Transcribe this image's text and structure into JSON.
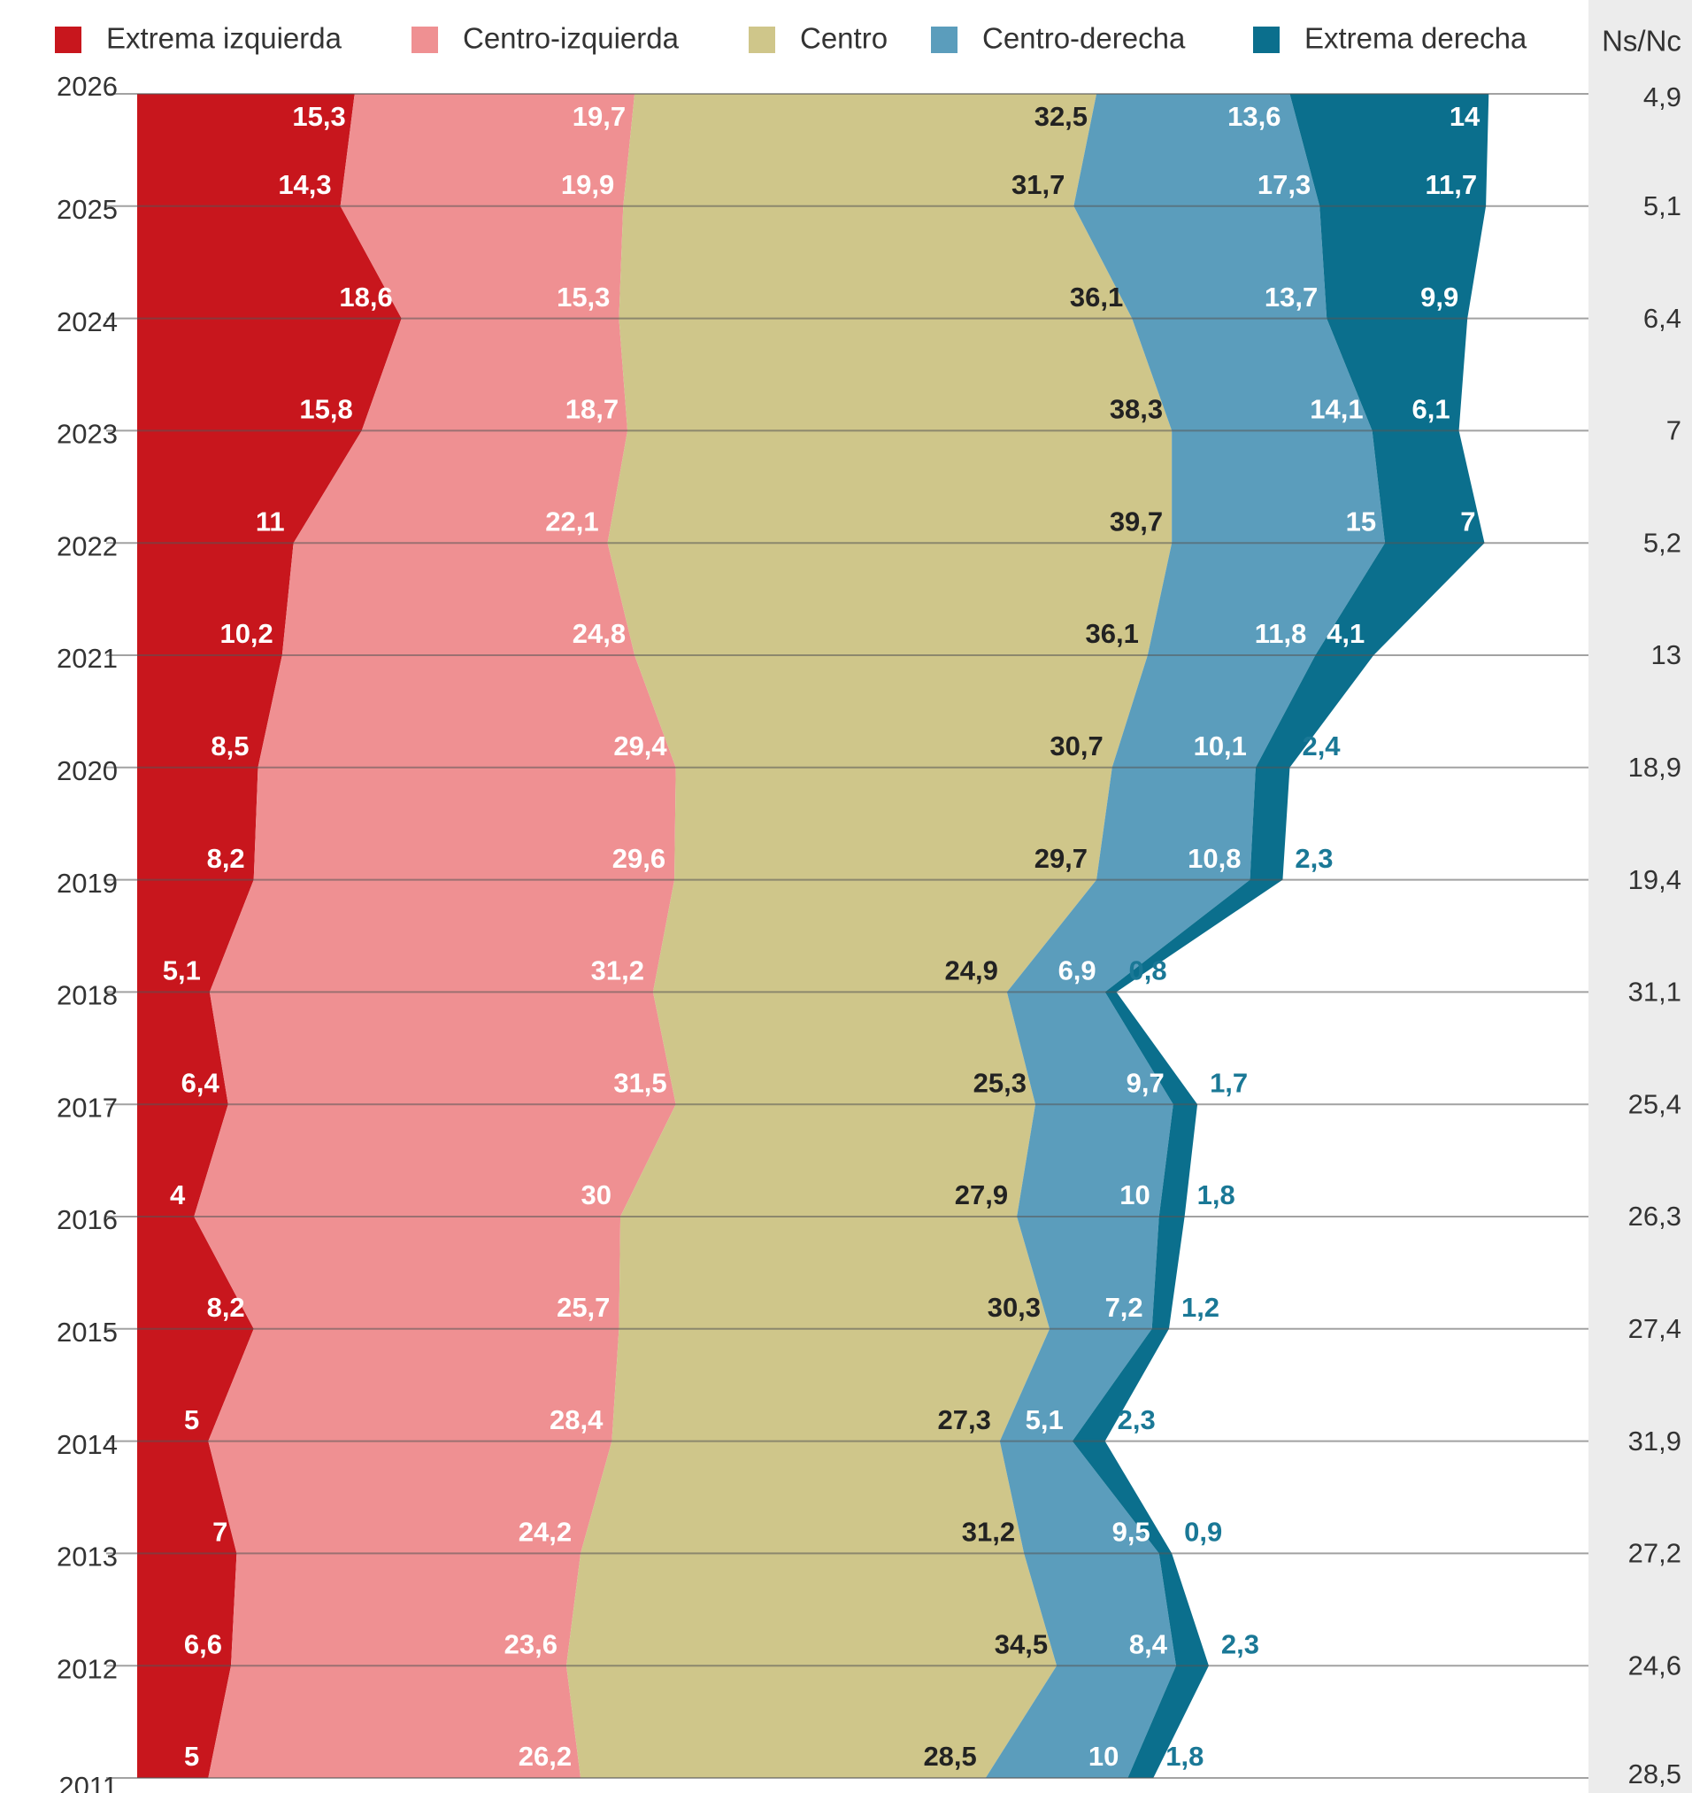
{
  "chart_data": {
    "type": "area",
    "orientation": "horizontal",
    "stacked": true,
    "categories": [
      "2026",
      "2025",
      "2024",
      "2023",
      "2022",
      "2021",
      "2020",
      "2019",
      "2018",
      "2017",
      "2016",
      "2015",
      "2014",
      "2013",
      "2012",
      "2011"
    ],
    "xlim": [
      0,
      100
    ],
    "series": [
      {
        "name": "Extrema izquierda",
        "color": "#c8161d",
        "values": [
          15.3,
          14.3,
          18.6,
          15.8,
          11,
          10.2,
          8.5,
          8.2,
          5.1,
          6.4,
          4,
          8.2,
          5,
          7,
          6.6,
          5
        ],
        "value_labels": [
          "15,3",
          "14,3",
          "18,6",
          "15,8",
          "11",
          "10,2",
          "8,5",
          "8,2",
          "5,1",
          "6,4",
          "4",
          "8,2",
          "5",
          "7",
          "6,6",
          "5"
        ]
      },
      {
        "name": "Centro-izquierda",
        "color": "#ef9092",
        "values": [
          19.7,
          19.9,
          15.3,
          18.7,
          22.1,
          24.8,
          29.4,
          29.6,
          31.2,
          31.5,
          30,
          25.7,
          28.4,
          24.2,
          23.6,
          26.2
        ],
        "value_labels": [
          "19,7",
          "19,9",
          "15,3",
          "18,7",
          "22,1",
          "24,8",
          "29,4",
          "29,6",
          "31,2",
          "31,5",
          "30",
          "25,7",
          "28,4",
          "24,2",
          "23,6",
          "26,2"
        ]
      },
      {
        "name": "Centro",
        "color": "#cfc68a",
        "values": [
          32.5,
          31.7,
          36.1,
          38.3,
          39.7,
          36.1,
          30.7,
          29.7,
          24.9,
          25.3,
          27.9,
          30.3,
          27.3,
          31.2,
          34.5,
          28.5
        ],
        "value_labels": [
          "32,5",
          "31,7",
          "36,1",
          "38,3",
          "39,7",
          "36,1",
          "30,7",
          "29,7",
          "24,9",
          "25,3",
          "27,9",
          "30,3",
          "27,3",
          "31,2",
          "34,5",
          "28,5"
        ]
      },
      {
        "name": "Centro-derecha",
        "color": "#5b9dbc",
        "values": [
          13.6,
          17.3,
          13.7,
          14.1,
          15,
          11.8,
          10.1,
          10.8,
          6.9,
          9.7,
          10,
          7.2,
          5.1,
          9.5,
          8.4,
          10
        ],
        "value_labels": [
          "13,6",
          "17,3",
          "13,7",
          "14,1",
          "15",
          "11,8",
          "10,1",
          "10,8",
          "6,9",
          "9,7",
          "10",
          "7,2",
          "5,1",
          "9,5",
          "8,4",
          "10"
        ]
      },
      {
        "name": "Extrema derecha",
        "color": "#0b6f8d",
        "values": [
          14,
          11.7,
          9.9,
          6.1,
          7,
          4.1,
          2.4,
          2.3,
          0.8,
          1.7,
          1.8,
          1.2,
          2.3,
          0.9,
          2.3,
          1.8
        ],
        "value_labels": [
          "14",
          "11,7",
          "9,9",
          "6,1",
          "7",
          "4,1",
          "2,4",
          "2,3",
          "0,8",
          "1,7",
          "1,8",
          "1,2",
          "2,3",
          "0,9",
          "2,3",
          "1,8"
        ]
      }
    ],
    "ns_nc": {
      "name": "Ns/Nc",
      "values": [
        4.9,
        5.1,
        6.4,
        7,
        5.2,
        13,
        18.9,
        19.4,
        31.1,
        25.4,
        26.3,
        27.4,
        31.9,
        27.2,
        24.6,
        28.5
      ],
      "value_labels": [
        "4,9",
        "5,1",
        "6,4",
        "7",
        "5,2",
        "13",
        "18,9",
        "19,4",
        "31,1",
        "25,4",
        "26,3",
        "27,4",
        "31,9",
        "27,2",
        "24,6",
        "28,5"
      ]
    }
  }
}
